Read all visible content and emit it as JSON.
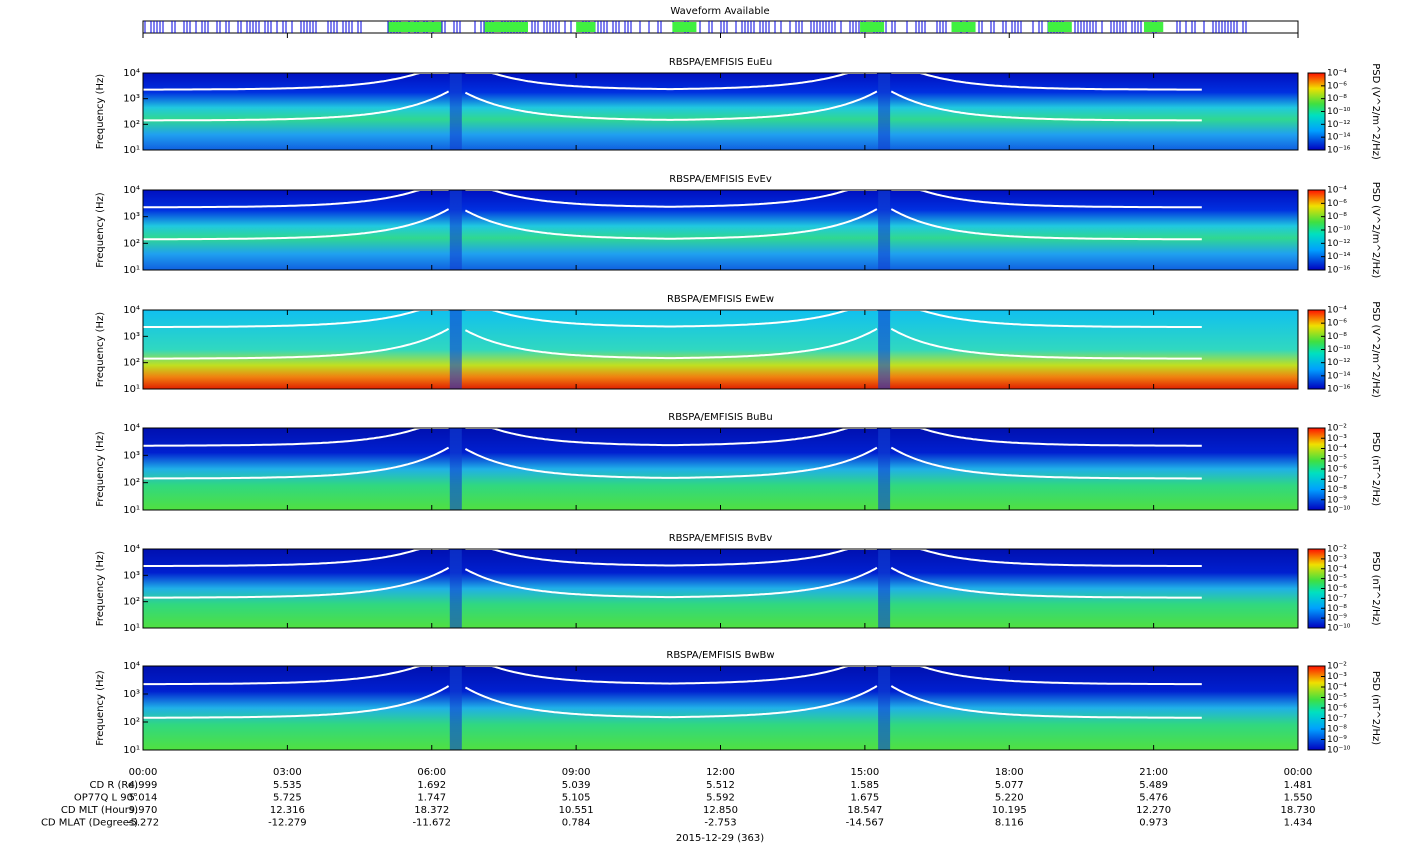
{
  "chart_data": {
    "type": "spectrogram",
    "waveform_title": "Waveform Available",
    "xlim": [
      0,
      24
    ],
    "xticks": [
      {
        "value": 0,
        "label": "00:00"
      },
      {
        "value": 3,
        "label": "03:00"
      },
      {
        "value": 6,
        "label": "06:00"
      },
      {
        "value": 9,
        "label": "09:00"
      },
      {
        "value": 12,
        "label": "12:00"
      },
      {
        "value": 15,
        "label": "15:00"
      },
      {
        "value": 18,
        "label": "18:00"
      },
      {
        "value": 21,
        "label": "21:00"
      },
      {
        "value": 24,
        "label": "00:00"
      }
    ],
    "ylabel": "Frequency (Hz)",
    "ylim": [
      10,
      10000
    ],
    "yticks": [
      {
        "value": 10,
        "label": "10¹"
      },
      {
        "value": 100,
        "label": "10²"
      },
      {
        "value": 1000,
        "label": "10³"
      },
      {
        "value": 10000,
        "label": "10⁴"
      }
    ],
    "log_y": true,
    "panels": [
      {
        "title": "RBSPA/EMFISIS  EuEu",
        "colorbar_label": "PSD (V^2/m^2/Hz)",
        "clim": [
          1e-16,
          0.0001
        ],
        "cticks": [
          {
            "value": 0.0001,
            "label": "10⁻⁴"
          },
          {
            "value": 1e-06,
            "label": "10⁻⁶"
          },
          {
            "value": 1e-08,
            "label": "10⁻⁸"
          },
          {
            "value": 1e-10,
            "label": "10⁻¹⁰"
          },
          {
            "value": 1e-12,
            "label": "10⁻¹²"
          },
          {
            "value": 1e-14,
            "label": "10⁻¹⁴"
          },
          {
            "value": 1e-16,
            "label": "10⁻¹⁶"
          }
        ]
      },
      {
        "title": "RBSPA/EMFISIS  EvEv",
        "colorbar_label": "PSD (V^2/m^2/Hz)",
        "clim": [
          1e-16,
          0.0001
        ],
        "cticks": [
          {
            "value": 0.0001,
            "label": "10⁻⁴"
          },
          {
            "value": 1e-06,
            "label": "10⁻⁶"
          },
          {
            "value": 1e-08,
            "label": "10⁻⁸"
          },
          {
            "value": 1e-10,
            "label": "10⁻¹⁰"
          },
          {
            "value": 1e-12,
            "label": "10⁻¹²"
          },
          {
            "value": 1e-14,
            "label": "10⁻¹⁴"
          },
          {
            "value": 1e-16,
            "label": "10⁻¹⁶"
          }
        ]
      },
      {
        "title": "RBSPA/EMFISIS  EwEw",
        "colorbar_label": "PSD (V^2/m^2/Hz)",
        "clim": [
          1e-16,
          0.0001
        ],
        "cticks": [
          {
            "value": 0.0001,
            "label": "10⁻⁴"
          },
          {
            "value": 1e-06,
            "label": "10⁻⁶"
          },
          {
            "value": 1e-08,
            "label": "10⁻⁸"
          },
          {
            "value": 1e-10,
            "label": "10⁻¹⁰"
          },
          {
            "value": 1e-12,
            "label": "10⁻¹²"
          },
          {
            "value": 1e-14,
            "label": "10⁻¹⁴"
          },
          {
            "value": 1e-16,
            "label": "10⁻¹⁶"
          }
        ]
      },
      {
        "title": "RBSPA/EMFISIS  BuBu",
        "colorbar_label": "PSD (nT^2/Hz)",
        "clim": [
          1e-10,
          0.01
        ],
        "cticks": [
          {
            "value": 0.01,
            "label": "10⁻²"
          },
          {
            "value": 0.001,
            "label": "10⁻³"
          },
          {
            "value": 0.0001,
            "label": "10⁻⁴"
          },
          {
            "value": 1e-05,
            "label": "10⁻⁵"
          },
          {
            "value": 1e-06,
            "label": "10⁻⁶"
          },
          {
            "value": 1e-07,
            "label": "10⁻⁷"
          },
          {
            "value": 1e-08,
            "label": "10⁻⁸"
          },
          {
            "value": 1e-09,
            "label": "10⁻⁹"
          },
          {
            "value": 1e-10,
            "label": "10⁻¹⁰"
          }
        ]
      },
      {
        "title": "RBSPA/EMFISIS  BvBv",
        "colorbar_label": "PSD (nT^2/Hz)",
        "clim": [
          1e-10,
          0.01
        ],
        "cticks": [
          {
            "value": 0.01,
            "label": "10⁻²"
          },
          {
            "value": 0.001,
            "label": "10⁻³"
          },
          {
            "value": 0.0001,
            "label": "10⁻⁴"
          },
          {
            "value": 1e-05,
            "label": "10⁻⁵"
          },
          {
            "value": 1e-06,
            "label": "10⁻⁶"
          },
          {
            "value": 1e-07,
            "label": "10⁻⁷"
          },
          {
            "value": 1e-08,
            "label": "10⁻⁸"
          },
          {
            "value": 1e-09,
            "label": "10⁻⁹"
          },
          {
            "value": 1e-10,
            "label": "10⁻¹⁰"
          }
        ]
      },
      {
        "title": "RBSPA/EMFISIS  BwBw",
        "colorbar_label": "PSD (nT^2/Hz)",
        "clim": [
          1e-10,
          0.01
        ],
        "cticks": [
          {
            "value": 0.01,
            "label": "10⁻²"
          },
          {
            "value": 0.001,
            "label": "10⁻³"
          },
          {
            "value": 0.0001,
            "label": "10⁻⁴"
          },
          {
            "value": 1e-05,
            "label": "10⁻⁵"
          },
          {
            "value": 1e-06,
            "label": "10⁻⁶"
          },
          {
            "value": 1e-07,
            "label": "10⁻⁷"
          },
          {
            "value": 1e-08,
            "label": "10⁻⁸"
          },
          {
            "value": 1e-09,
            "label": "10⁻⁹"
          },
          {
            "value": 1e-10,
            "label": "10⁻¹⁰"
          }
        ]
      }
    ],
    "ephemeris": [
      {
        "label": "CD R (Re)",
        "values": [
          "4.999",
          "5.535",
          "1.692",
          "5.039",
          "5.512",
          "1.585",
          "5.077",
          "5.489",
          "1.481"
        ]
      },
      {
        "label": "OP77Q L 90°",
        "values": [
          "5.014",
          "5.725",
          "1.747",
          "5.105",
          "5.592",
          "1.675",
          "5.220",
          "5.476",
          "1.550"
        ]
      },
      {
        "label": "CD MLT (Hours)",
        "values": [
          "9.970",
          "12.316",
          "18.372",
          "10.551",
          "12.850",
          "18.547",
          "10.195",
          "12.270",
          "18.730"
        ]
      },
      {
        "label": "CD MLAT (Degrees)",
        "values": [
          "-5.272",
          "-12.279",
          "-11.672",
          "0.784",
          "-2.753",
          "-14.567",
          "8.116",
          "0.973",
          "1.434"
        ]
      }
    ],
    "date": "2015-12-29 (363)"
  }
}
